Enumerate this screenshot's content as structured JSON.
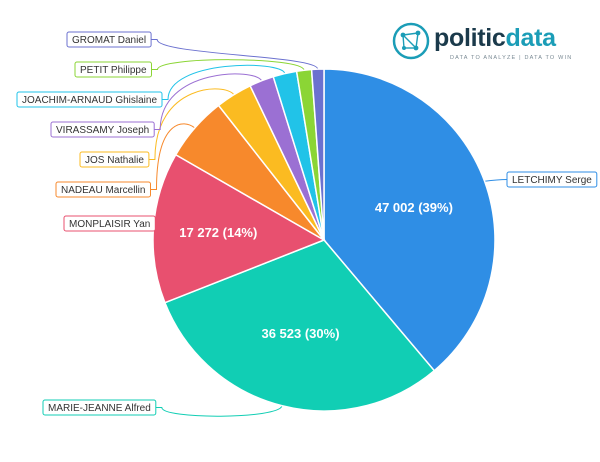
{
  "logo": {
    "name_part1": "politic",
    "name_part2": "data",
    "tagline": "DATA TO ANALYZE | DATA TO WIN"
  },
  "chart_data": {
    "type": "pie",
    "title": "",
    "categories": [
      "LETCHIMY Serge",
      "MARIE-JEANNE Alfred",
      "MONPLAISIR Yan",
      "NADEAU Marcellin",
      "JOS Nathalie",
      "VIRASSAMY Joseph",
      "JOACHIM-ARNAUD Ghislaine",
      "PETIT Philippe",
      "GROMAT Daniel"
    ],
    "values": [
      47002,
      36523,
      17272,
      7400,
      4200,
      2800,
      2700,
      1700,
      1400
    ],
    "data_labels": [
      "47 002 (39%)",
      "36 523 (30%)",
      "17 272 (14%)",
      "",
      "",
      "",
      "",
      "",
      ""
    ],
    "colors": [
      "#2f8ee5",
      "#11ceb4",
      "#e8506f",
      "#f7892c",
      "#fbbb21",
      "#9b70d3",
      "#21c3e8",
      "#8bd535",
      "#6b71cf"
    ],
    "legend": "callout labels around pie"
  }
}
